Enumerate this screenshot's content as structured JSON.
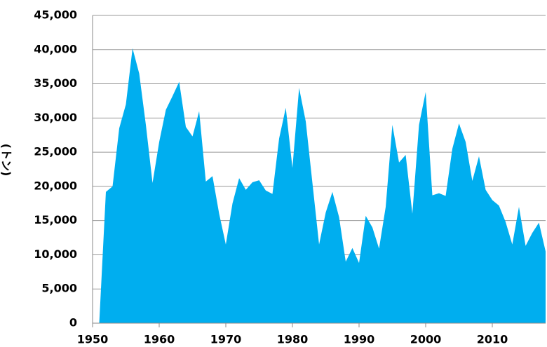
{
  "chart_data": {
    "type": "area",
    "y_label": "(トン)",
    "color": "#00aeef",
    "grid": true,
    "x": [
      1951,
      1952,
      1953,
      1954,
      1955,
      1956,
      1957,
      1958,
      1959,
      1960,
      1961,
      1962,
      1963,
      1964,
      1965,
      1966,
      1967,
      1968,
      1969,
      1970,
      1971,
      1972,
      1973,
      1974,
      1975,
      1976,
      1977,
      1978,
      1979,
      1980,
      1981,
      1982,
      1983,
      1984,
      1985,
      1986,
      1987,
      1988,
      1989,
      1990,
      1991,
      1992,
      1993,
      1994,
      1995,
      1996,
      1997,
      1998,
      1999,
      2000,
      2001,
      2002,
      2003,
      2004,
      2005,
      2006,
      2007,
      2008,
      2009,
      2010,
      2011,
      2012,
      2013,
      2014,
      2015,
      2016,
      2017,
      2018
    ],
    "values": [
      0,
      19200,
      20000,
      28500,
      32000,
      40200,
      36500,
      29000,
      20500,
      26500,
      31200,
      33200,
      35300,
      28700,
      27300,
      31000,
      20700,
      21500,
      16000,
      11500,
      17500,
      21200,
      19500,
      20600,
      20900,
      19400,
      18900,
      27000,
      31500,
      22700,
      34400,
      29500,
      20500,
      11500,
      16200,
      19200,
      15500,
      9000,
      11000,
      8800,
      15700,
      14000,
      10900,
      17000,
      29000,
      23500,
      24600,
      16000,
      29000,
      33800,
      18700,
      19000,
      18600,
      25500,
      29200,
      26500,
      20800,
      24400,
      19500,
      18000,
      17200,
      14800,
      11500,
      17000,
      11300,
      13200,
      14700,
      10500
    ],
    "xlim": [
      1950,
      2018
    ],
    "xticks": [
      1950,
      1960,
      1970,
      1980,
      1990,
      2000,
      2010
    ],
    "ylim": [
      0,
      45000
    ],
    "yticks": [
      0,
      {
        "value": 5000,
        "label": "5,000"
      },
      {
        "value": 10000,
        "label": "10,000"
      },
      {
        "value": 15000,
        "label": "15,000"
      },
      {
        "value": 20000,
        "label": "20,000"
      },
      {
        "value": 25000,
        "label": "25,000"
      },
      {
        "value": 30000,
        "label": "30,000"
      },
      {
        "value": 35000,
        "label": "35,000"
      },
      {
        "value": 40000,
        "label": "40,000"
      },
      {
        "value": 45000,
        "label": "45,000"
      }
    ]
  }
}
